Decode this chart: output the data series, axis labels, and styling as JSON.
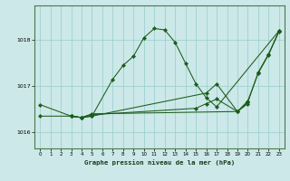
{
  "title": "Graphe pression niveau de la mer (hPa)",
  "background_color": "#cce8e8",
  "grid_color": "#99cccc",
  "line_color": "#1a5c1a",
  "xlim": [
    -0.5,
    23.5
  ],
  "ylim": [
    1015.65,
    1018.75
  ],
  "yticks": [
    1016,
    1017,
    1018
  ],
  "xticks": [
    0,
    1,
    2,
    3,
    4,
    5,
    6,
    7,
    8,
    9,
    10,
    11,
    12,
    13,
    14,
    15,
    16,
    17,
    18,
    19,
    20,
    21,
    22,
    23
  ],
  "series": [
    {
      "x": [
        0,
        3,
        4,
        5,
        7,
        8,
        9,
        10,
        11,
        12,
        13,
        14,
        15,
        16,
        17,
        23
      ],
      "y": [
        1016.35,
        1016.35,
        1016.32,
        1016.35,
        1017.15,
        1017.45,
        1017.65,
        1018.05,
        1018.25,
        1018.22,
        1017.95,
        1017.5,
        1017.05,
        1016.75,
        1016.55,
        1018.2
      ]
    },
    {
      "x": [
        0,
        3,
        4,
        5,
        16,
        17,
        19,
        20,
        21,
        22,
        23
      ],
      "y": [
        1016.6,
        1016.35,
        1016.32,
        1016.35,
        1016.85,
        1017.05,
        1016.45,
        1016.65,
        1017.3,
        1017.7,
        1018.2
      ]
    },
    {
      "x": [
        3,
        4,
        5,
        15,
        16,
        17,
        19,
        20
      ],
      "y": [
        1016.35,
        1016.32,
        1016.38,
        1016.52,
        1016.62,
        1016.72,
        1016.45,
        1016.62
      ]
    },
    {
      "x": [
        3,
        4,
        5,
        19,
        20,
        21,
        22,
        23
      ],
      "y": [
        1016.35,
        1016.32,
        1016.4,
        1016.45,
        1016.68,
        1017.28,
        1017.68,
        1018.18
      ]
    }
  ]
}
